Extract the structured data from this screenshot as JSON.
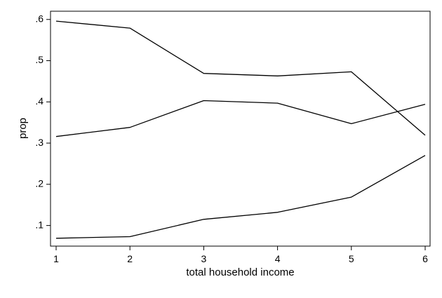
{
  "chart_data": {
    "type": "line",
    "title": "",
    "xlabel": "total household income",
    "ylabel": "prop",
    "x": [
      1,
      2,
      3,
      4,
      5,
      6
    ],
    "xlim": [
      1,
      6
    ],
    "ylim": [
      0.05,
      0.62
    ],
    "x_ticks": [
      1,
      2,
      3,
      4,
      5,
      6
    ],
    "x_tick_labels": [
      "1",
      "2",
      "3",
      "4",
      "5",
      "6"
    ],
    "y_ticks": [
      0.1,
      0.2,
      0.3,
      0.4,
      0.5,
      0.6
    ],
    "y_tick_labels": [
      ".1",
      ".2",
      ".3",
      ".4",
      ".5",
      ".6"
    ],
    "grid": false,
    "legend": "none",
    "line_color": "#000000",
    "series": [
      {
        "values": [
          0.596,
          0.579,
          0.469,
          0.463,
          0.473,
          0.319
        ]
      },
      {
        "values": [
          0.316,
          0.338,
          0.403,
          0.397,
          0.347,
          0.394
        ]
      },
      {
        "values": [
          0.069,
          0.073,
          0.115,
          0.132,
          0.169,
          0.27
        ]
      }
    ]
  }
}
